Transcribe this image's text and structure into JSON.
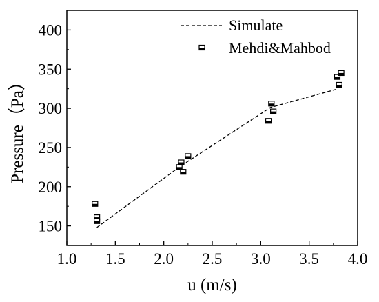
{
  "chart_data": {
    "type": "scatter",
    "xlabel": "u (m/s)",
    "ylabel": "Pressure（Pa）",
    "xlim": [
      1.0,
      4.0
    ],
    "ylim": [
      125,
      425
    ],
    "xticks": [
      1.0,
      1.5,
      2.0,
      2.5,
      3.0,
      3.5,
      4.0
    ],
    "xtick_labels": [
      "1.0",
      "1.5",
      "2.0",
      "2.5",
      "3.0",
      "3.5",
      "4.0"
    ],
    "yticks": [
      150,
      200,
      250,
      300,
      350,
      400
    ],
    "ytick_labels": [
      "150",
      "200",
      "250",
      "300",
      "350",
      "400"
    ],
    "grid": false,
    "legend_position": "top-right",
    "series": [
      {
        "name": "Simulate",
        "style": "dashed-line",
        "color": "#000000",
        "x": [
          1.31,
          2.17,
          3.1,
          3.8
        ],
        "y": [
          148,
          226,
          301,
          325
        ]
      },
      {
        "name": "Mehdi&Mahbod",
        "style": "half-filled-square-marker",
        "color": "#000000",
        "x": [
          1.29,
          1.31,
          1.31,
          2.16,
          2.18,
          2.2,
          2.25,
          3.08,
          3.11,
          3.13,
          3.79,
          3.81,
          3.83
        ],
        "y": [
          178,
          161,
          156,
          225,
          231,
          219,
          239,
          284,
          306,
          296,
          340,
          330,
          345
        ]
      }
    ]
  }
}
